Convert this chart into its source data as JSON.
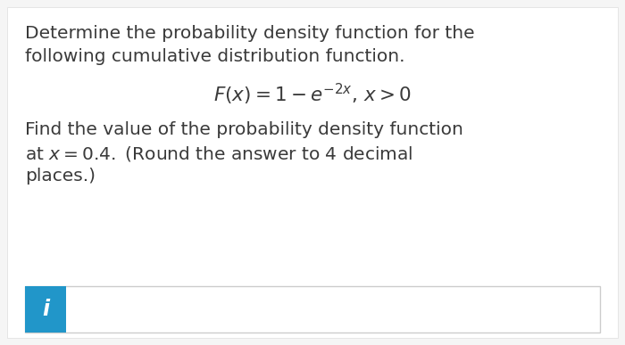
{
  "bg_color": "#f5f5f5",
  "card_color": "#ffffff",
  "text_line1": "Determine the probability density function for the",
  "text_line2": "following cumulative distribution function.",
  "formula": "$F(x) = 1 - e^{-2x},\\,x > 0$",
  "text_line3": "Find the value of the probability density function",
  "text_line4": "at $x = 0.4.$ (Round the answer to 4 decimal",
  "text_line5": "places.)",
  "button_color": "#2196c9",
  "button_label": "i",
  "button_label_color": "#ffffff",
  "main_font_size": 14.5,
  "formula_font_size": 15.5,
  "text_color": "#3a3a3a",
  "box_edge_color": "#cccccc"
}
